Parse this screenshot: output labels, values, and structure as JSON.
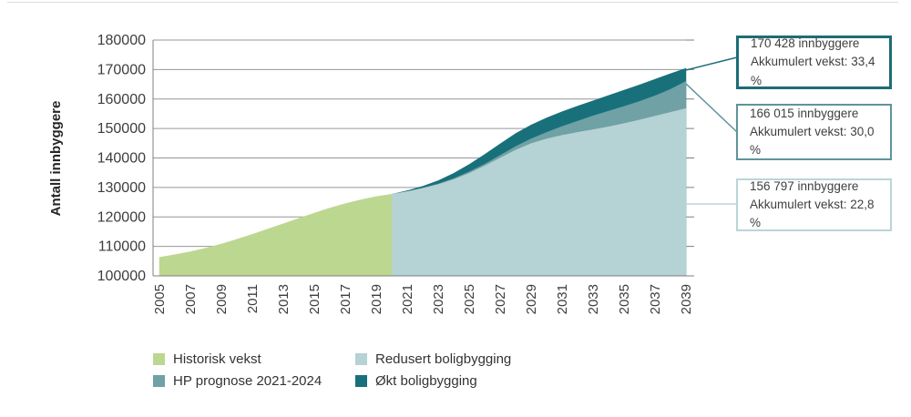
{
  "chart_data": {
    "type": "area",
    "title": "",
    "xlabel": "",
    "ylabel": "Antall innbyggere",
    "ylim": [
      100000,
      180000
    ],
    "y_ticks": [
      100000,
      110000,
      120000,
      130000,
      140000,
      150000,
      160000,
      170000,
      180000
    ],
    "x_ticks": [
      2005,
      2007,
      2009,
      2011,
      2013,
      2015,
      2017,
      2019,
      2021,
      2023,
      2025,
      2027,
      2029,
      2031,
      2033,
      2035,
      2037,
      2039
    ],
    "grid": true,
    "legend_position": "bottom",
    "series": [
      {
        "name": "Økt boligbygging",
        "color": "#18707b",
        "start_year": 2020,
        "values": [
          127700,
          128900,
          130400,
          132300,
          134800,
          137800,
          141200,
          144800,
          148300,
          151200,
          153600,
          155700,
          157600,
          159400,
          161200,
          163000,
          164800,
          166700,
          168600,
          170428
        ]
      },
      {
        "name": "HP prognose 2021-2024",
        "color": "#6fa1a5",
        "start_year": 2020,
        "values": [
          127700,
          128600,
          129800,
          131200,
          133000,
          135300,
          137900,
          140900,
          143900,
          146500,
          148700,
          150700,
          152500,
          154300,
          155900,
          157500,
          159200,
          161100,
          163300,
          166015
        ]
      },
      {
        "name": "Redusert boligbygging",
        "color": "#b5d2d4",
        "start_year": 2020,
        "values": [
          127700,
          128600,
          129700,
          131000,
          132700,
          134800,
          137300,
          140000,
          142700,
          144900,
          146500,
          147700,
          148700,
          149600,
          150600,
          151700,
          152900,
          154200,
          155500,
          156797
        ]
      },
      {
        "name": "Historisk vekst",
        "color": "#bcd78f",
        "start_year": 2005,
        "values": [
          106300,
          107200,
          108200,
          109400,
          110800,
          112400,
          114100,
          115900,
          117700,
          119500,
          121300,
          123000,
          124500,
          125800,
          126900,
          127700
        ]
      }
    ]
  },
  "legend": {
    "items": [
      {
        "label": "Historisk vekst",
        "color": "#bcd78f"
      },
      {
        "label": "Redusert boligbygging",
        "color": "#b5d2d4"
      },
      {
        "label": "HP prognose 2021-2024",
        "color": "#6fa1a5"
      },
      {
        "label": "Økt boligbygging",
        "color": "#18707b"
      }
    ]
  },
  "callouts": [
    {
      "line1": "170 428 innbyggere",
      "line2": "Akkumulert vekst: 33,4 %",
      "border_color": "#1d6d75"
    },
    {
      "line1": "166 015 innbyggere",
      "line2": "Akkumulert vekst: 30,0 %",
      "border_color": "#5f949b"
    },
    {
      "line1": "156 797 innbyggere",
      "line2": "Akkumulert vekst: 22,8 %",
      "border_color": "#bad5d8"
    }
  ]
}
